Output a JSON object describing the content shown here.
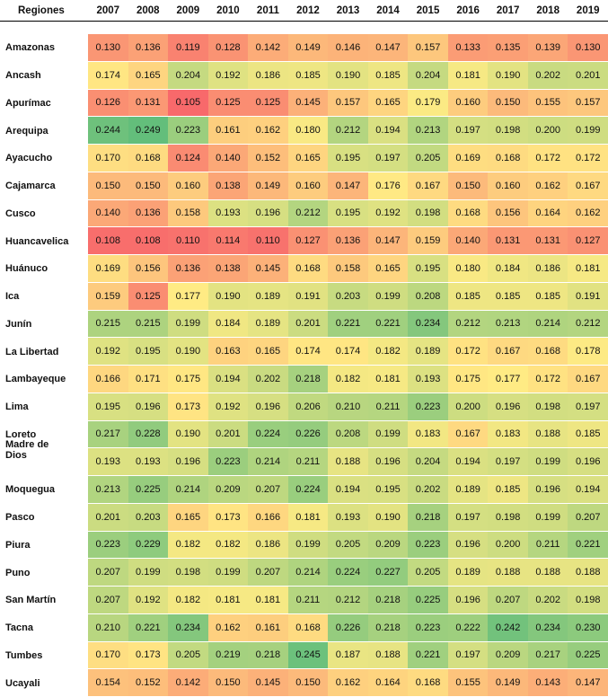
{
  "table": {
    "header": [
      "Regiones",
      "2007",
      "2008",
      "2009",
      "2010",
      "2011",
      "2012",
      "2013",
      "2014",
      "2015",
      "2016",
      "2017",
      "2018",
      "2019"
    ],
    "rows": [
      [
        "Amazonas",
        "0.130",
        "0.136",
        "0.119",
        "0.128",
        "0.142",
        "0.149",
        "0.146",
        "0.147",
        "0.157",
        "0.133",
        "0.135",
        "0.139",
        "0.130"
      ],
      [
        "Ancash",
        "0.174",
        "0.165",
        "0.204",
        "0.192",
        "0.186",
        "0.185",
        "0.190",
        "0.185",
        "0.204",
        "0.181",
        "0.190",
        "0.202",
        "0.201"
      ],
      [
        "Apurímac",
        "0.126",
        "0.131",
        "0.105",
        "0.125",
        "0.125",
        "0.145",
        "0.157",
        "0.165",
        "0.179",
        "0.160",
        "0.150",
        "0.155",
        "0.157"
      ],
      [
        "Arequipa",
        "0.244",
        "0.249",
        "0.223",
        "0.161",
        "0.162",
        "0.180",
        "0.212",
        "0.194",
        "0.213",
        "0.197",
        "0.198",
        "0.200",
        "0.199"
      ],
      [
        "Ayacucho",
        "0.170",
        "0.168",
        "0.124",
        "0.140",
        "0.152",
        "0.165",
        "0.195",
        "0.197",
        "0.205",
        "0.169",
        "0.168",
        "0.172",
        "0.172"
      ],
      [
        "Cajamarca",
        "0.150",
        "0.150",
        "0.160",
        "0.138",
        "0.149",
        "0.160",
        "0.147",
        "0.176",
        "0.167",
        "0.150",
        "0.160",
        "0.162",
        "0.167"
      ],
      [
        "Cusco",
        "0.140",
        "0.136",
        "0.158",
        "0.193",
        "0.196",
        "0.212",
        "0.195",
        "0.192",
        "0.198",
        "0.168",
        "0.156",
        "0.164",
        "0.162"
      ],
      [
        "Huancavelica",
        "0.108",
        "0.108",
        "0.110",
        "0.114",
        "0.110",
        "0.127",
        "0.136",
        "0.147",
        "0.159",
        "0.140",
        "0.131",
        "0.131",
        "0.127"
      ],
      [
        "Huánuco",
        "0.169",
        "0.156",
        "0.136",
        "0.138",
        "0.145",
        "0.168",
        "0.158",
        "0.165",
        "0.195",
        "0.180",
        "0.184",
        "0.186",
        "0.181"
      ],
      [
        "Ica",
        "0.159",
        "0.125",
        "0.177",
        "0.190",
        "0.189",
        "0.191",
        "0.203",
        "0.199",
        "0.208",
        "0.185",
        "0.185",
        "0.185",
        "0.191"
      ],
      [
        "Junín",
        "0.215",
        "0.215",
        "0.199",
        "0.184",
        "0.189",
        "0.201",
        "0.221",
        "0.221",
        "0.234",
        "0.212",
        "0.213",
        "0.214",
        "0.212"
      ],
      [
        "La Libertad",
        "0.192",
        "0.195",
        "0.190",
        "0.163",
        "0.165",
        "0.174",
        "0.174",
        "0.182",
        "0.189",
        "0.172",
        "0.167",
        "0.168",
        "0.178"
      ],
      [
        "Lambayeque",
        "0.166",
        "0.171",
        "0.175",
        "0.194",
        "0.202",
        "0.218",
        "0.182",
        "0.181",
        "0.193",
        "0.175",
        "0.177",
        "0.172",
        "0.167"
      ],
      [
        "Lima",
        "0.195",
        "0.196",
        "0.173",
        "0.192",
        "0.196",
        "0.206",
        "0.210",
        "0.211",
        "0.223",
        "0.200",
        "0.196",
        "0.198",
        "0.197"
      ],
      [
        "Loreto",
        "0.217",
        "0.228",
        "0.190",
        "0.201",
        "0.224",
        "0.226",
        "0.208",
        "0.199",
        "0.183",
        "0.167",
        "0.183",
        "0.188",
        "0.185"
      ],
      [
        "Madre de Dios",
        "0.193",
        "0.193",
        "0.196",
        "0.223",
        "0.214",
        "0.211",
        "0.188",
        "0.196",
        "0.204",
        "0.194",
        "0.197",
        "0.199",
        "0.196"
      ],
      [
        "Moquegua",
        "0.213",
        "0.225",
        "0.214",
        "0.209",
        "0.207",
        "0.224",
        "0.194",
        "0.195",
        "0.202",
        "0.189",
        "0.185",
        "0.196",
        "0.194"
      ],
      [
        "Pasco",
        "0.201",
        "0.203",
        "0.165",
        "0.173",
        "0.166",
        "0.181",
        "0.193",
        "0.190",
        "0.218",
        "0.197",
        "0.198",
        "0.199",
        "0.207"
      ],
      [
        "Piura",
        "0.223",
        "0.229",
        "0.182",
        "0.182",
        "0.186",
        "0.199",
        "0.205",
        "0.209",
        "0.223",
        "0.196",
        "0.200",
        "0.211",
        "0.221"
      ],
      [
        "Puno",
        "0.207",
        "0.199",
        "0.198",
        "0.199",
        "0.207",
        "0.214",
        "0.224",
        "0.227",
        "0.205",
        "0.189",
        "0.188",
        "0.188",
        "0.188"
      ],
      [
        "San Martín",
        "0.207",
        "0.192",
        "0.182",
        "0.181",
        "0.181",
        "0.211",
        "0.212",
        "0.218",
        "0.225",
        "0.196",
        "0.207",
        "0.202",
        "0.198"
      ],
      [
        "Tacna",
        "0.210",
        "0.221",
        "0.234",
        "0.162",
        "0.161",
        "0.168",
        "0.226",
        "0.218",
        "0.223",
        "0.222",
        "0.242",
        "0.234",
        "0.230"
      ],
      [
        "Tumbes",
        "0.170",
        "0.173",
        "0.205",
        "0.219",
        "0.218",
        "0.245",
        "0.187",
        "0.188",
        "0.221",
        "0.197",
        "0.209",
        "0.217",
        "0.225"
      ],
      [
        "Ucayali",
        "0.154",
        "0.152",
        "0.142",
        "0.150",
        "0.145",
        "0.150",
        "0.162",
        "0.164",
        "0.168",
        "0.155",
        "0.149",
        "0.143",
        "0.147"
      ]
    ]
  }
}
